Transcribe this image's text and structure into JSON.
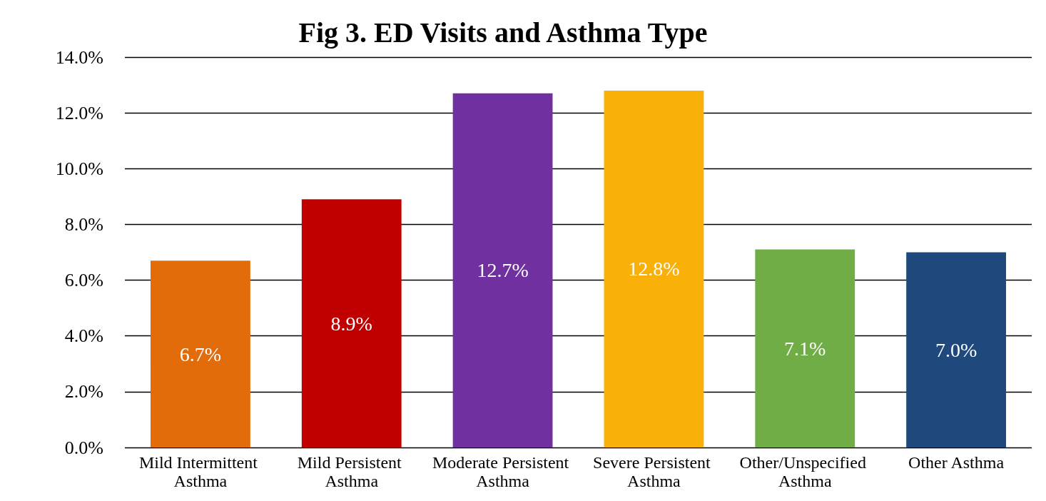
{
  "chart_data": {
    "type": "bar",
    "title": "Fig 3. ED Visits and Asthma Type",
    "categories": [
      "Mild Intermittent Asthma",
      "Mild Persistent Asthma",
      "Moderate Persistent Asthma",
      "Severe Persistent Asthma",
      "Other/Unspecified Asthma",
      "Other Asthma"
    ],
    "values": [
      6.7,
      8.9,
      12.7,
      12.8,
      7.1,
      7.0
    ],
    "colors": [
      "#e36c0a",
      "#c00000",
      "#7030a0",
      "#f9b008",
      "#70ad47",
      "#1f497d"
    ],
    "value_labels": [
      "6.7%",
      "8.9%",
      "12.7%",
      "12.8%",
      "7.1%",
      "7.0%"
    ],
    "ylim": [
      0,
      14
    ],
    "yticks": [
      {
        "value": 0,
        "label": "0.0%"
      },
      {
        "value": 2,
        "label": "2.0%"
      },
      {
        "value": 4,
        "label": "4.0%"
      },
      {
        "value": 6,
        "label": "6.0%"
      },
      {
        "value": 8,
        "label": "8.0%"
      },
      {
        "value": 10,
        "label": "10.0%"
      },
      {
        "value": 12,
        "label": "12.0%"
      },
      {
        "value": 14,
        "label": "14.0%"
      }
    ],
    "grid": "y"
  }
}
